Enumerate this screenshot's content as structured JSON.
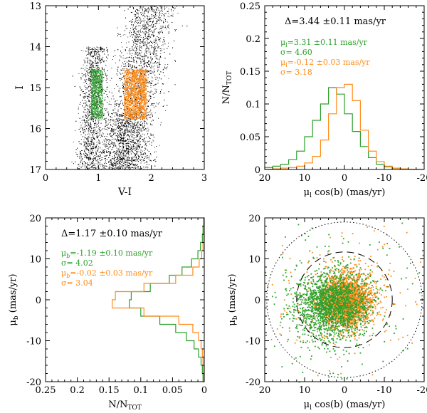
{
  "colors": {
    "green": "#2ca02c",
    "orange": "#ff8c1a",
    "black": "#000000"
  },
  "chart_data": [
    {
      "id": "cmd",
      "type": "scatter",
      "xlabel": "V-I",
      "ylabel": "I",
      "xlim": [
        0,
        3
      ],
      "ylim": [
        17,
        13
      ],
      "xticks": [
        0,
        1,
        2,
        3
      ],
      "yticks": [
        13,
        14,
        15,
        16,
        17
      ],
      "selection_boxes": [
        {
          "name": "green",
          "color": "green",
          "x_range": [
            0.85,
            1.07
          ],
          "y_range": [
            14.55,
            15.75
          ]
        },
        {
          "name": "orange",
          "color": "orange",
          "x_range": [
            1.48,
            1.9
          ],
          "y_range": [
            14.55,
            15.75
          ]
        }
      ]
    },
    {
      "id": "hist_l",
      "type": "line",
      "xlabel": "μ",
      "xlabel_sub": "l",
      "xlabel_rest": " cos(b) (mas/yr)",
      "ylabel": "N/N",
      "ylabel_sub": "TOT",
      "xlim": [
        20,
        -20
      ],
      "ylim": [
        0,
        0.25
      ],
      "xticks": [
        20,
        10,
        0,
        -10,
        -20
      ],
      "yticks": [
        0,
        0.05,
        0.1,
        0.15,
        0.2,
        0.25
      ],
      "delta_text": "Δ=3.44  ±0.11 mas/yr",
      "series": [
        {
          "name": "green",
          "color": "green",
          "label_line1": "μ",
          "label_sub": "l",
          "label_rest": "=3.31  ±0.11 mas/yr",
          "label_sigma": "σ=  4.60",
          "bin_edges": [
            20,
            18,
            16,
            14,
            12,
            10,
            8,
            6,
            4,
            2,
            0,
            -2,
            -4,
            -6,
            -8,
            -10,
            -12,
            -14,
            -16,
            -18,
            -20
          ],
          "values": [
            0.003,
            0.005,
            0.008,
            0.015,
            0.028,
            0.05,
            0.075,
            0.1,
            0.125,
            0.115,
            0.085,
            0.058,
            0.035,
            0.018,
            0.008,
            0.004,
            0.002,
            0.001,
            0.0005,
            0.0002
          ]
        },
        {
          "name": "orange",
          "color": "orange",
          "label_line1": "μ",
          "label_sub": "l",
          "label_rest": "=-0.12  ±0.03 mas/yr",
          "label_sigma": "σ=  3.18",
          "bin_edges": [
            20,
            18,
            16,
            14,
            12,
            10,
            8,
            6,
            4,
            2,
            0,
            -2,
            -4,
            -6,
            -8,
            -10,
            -12,
            -14,
            -16,
            -18,
            -20
          ],
          "values": [
            0.0005,
            0.001,
            0.002,
            0.003,
            0.005,
            0.01,
            0.02,
            0.045,
            0.085,
            0.125,
            0.13,
            0.105,
            0.06,
            0.028,
            0.012,
            0.005,
            0.002,
            0.001,
            0.0005,
            0.0002
          ]
        }
      ]
    },
    {
      "id": "hist_b",
      "type": "line",
      "orientation": "horizontal",
      "xlabel": "N/N",
      "xlabel_sub": "TOT",
      "ylabel": "μ",
      "ylabel_sub": "b",
      "ylabel_rest": " (mas/yr)",
      "xlim": [
        0.25,
        0
      ],
      "ylim": [
        -20,
        20
      ],
      "xticks": [
        0.25,
        0.2,
        0.15,
        0.1,
        0.05,
        0
      ],
      "yticks": [
        -20,
        -10,
        0,
        10,
        20
      ],
      "delta_text": "Δ=1.17  ±0.10 mas/yr",
      "series": [
        {
          "name": "green",
          "color": "green",
          "label_line1": "μ",
          "label_sub": "b",
          "label_rest": "=-1.19  ±0.10 mas/yr",
          "label_sigma": "σ=  4.02",
          "bin_edges": [
            -20,
            -18,
            -16,
            -14,
            -12,
            -10,
            -8,
            -6,
            -4,
            -2,
            0,
            2,
            4,
            6,
            8,
            10,
            12,
            14,
            16,
            18,
            20
          ],
          "values": [
            0.002,
            0.003,
            0.005,
            0.009,
            0.016,
            0.028,
            0.045,
            0.07,
            0.1,
            0.118,
            0.115,
            0.085,
            0.055,
            0.035,
            0.02,
            0.01,
            0.006,
            0.003,
            0.002,
            0.001
          ]
        },
        {
          "name": "orange",
          "color": "orange",
          "label_line1": "μ",
          "label_sub": "b",
          "label_rest": "=-0.02  ±0.03 mas/yr",
          "label_sigma": "σ=  3.04",
          "bin_edges": [
            -20,
            -18,
            -16,
            -14,
            -12,
            -10,
            -8,
            -6,
            -4,
            -2,
            0,
            2,
            4,
            6,
            8,
            10,
            12,
            14,
            16,
            18,
            20
          ],
          "values": [
            0.0005,
            0.001,
            0.002,
            0.003,
            0.005,
            0.009,
            0.018,
            0.04,
            0.095,
            0.145,
            0.14,
            0.095,
            0.045,
            0.018,
            0.008,
            0.004,
            0.002,
            0.001,
            0.0005,
            0.0002
          ]
        }
      ]
    },
    {
      "id": "vpd",
      "type": "scatter",
      "xlabel": "μ",
      "xlabel_sub": "l",
      "xlabel_rest": " cos(b) (mas/yr)",
      "ylabel": "μ",
      "ylabel_sub": "b",
      "ylabel_rest": " (mas/yr)",
      "xlim": [
        20,
        -20
      ],
      "ylim": [
        -20,
        20
      ],
      "xticks": [
        20,
        10,
        0,
        -10,
        -20
      ],
      "yticks": [
        -20,
        -10,
        0,
        10,
        20
      ],
      "circles": [
        {
          "style": "dashed",
          "center": [
            0,
            0
          ],
          "radius": 12
        },
        {
          "style": "dotted",
          "center": [
            0,
            0
          ],
          "radius": 19.5
        }
      ],
      "series": [
        {
          "name": "orange",
          "color": "orange",
          "mean": [
            -0.12,
            -0.02
          ],
          "sigma": [
            3.18,
            3.04
          ]
        },
        {
          "name": "green",
          "color": "green",
          "mean": [
            3.31,
            -1.19
          ],
          "sigma": [
            4.6,
            4.02
          ]
        }
      ]
    }
  ]
}
